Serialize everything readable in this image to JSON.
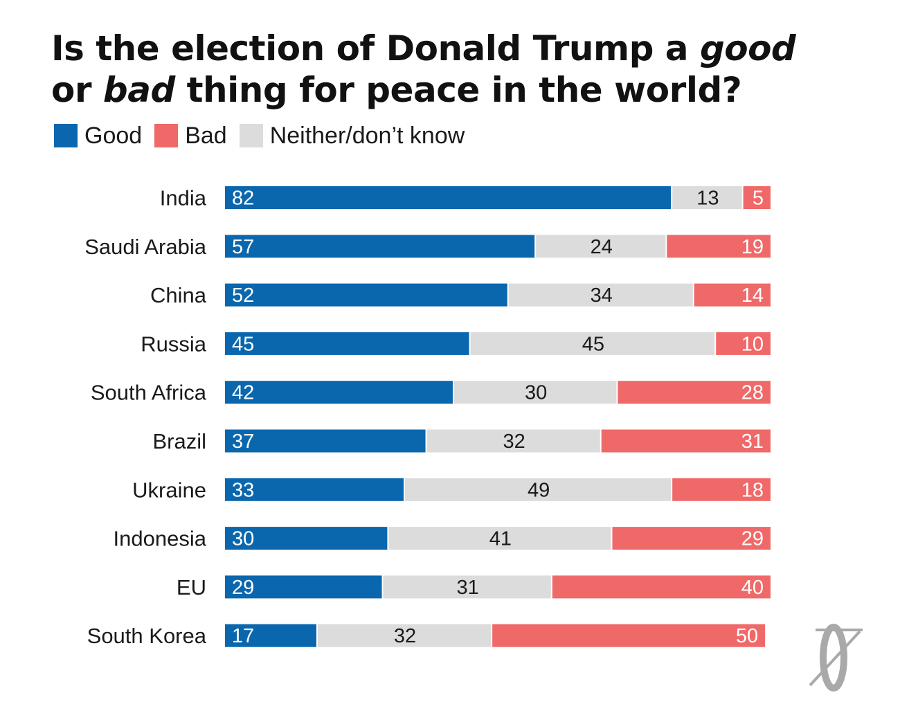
{
  "title": {
    "line1_part1": "Is the election of Donald Trump a ",
    "line1_em": "good",
    "line2_part1": "or ",
    "line2_em": "bad",
    "line2_part2": " thing for peace in the world?"
  },
  "legend": [
    {
      "label": "Good",
      "color": "#0a67ad"
    },
    {
      "label": "Bad",
      "color": "#f06969"
    },
    {
      "label": "Neither/don’t know",
      "color": "#dcdcdc"
    }
  ],
  "chart_data": {
    "type": "bar",
    "orientation": "horizontal",
    "stacked": true,
    "stack_order": [
      "Good",
      "Neither/don’t know",
      "Bad"
    ],
    "categories": [
      "India",
      "Saudi Arabia",
      "China",
      "Russia",
      "South Africa",
      "Brazil",
      "Ukraine",
      "Indonesia",
      "EU",
      "South Korea"
    ],
    "series": [
      {
        "name": "Good",
        "color": "#0a67ad",
        "values": [
          82,
          57,
          52,
          45,
          42,
          37,
          33,
          30,
          29,
          17
        ]
      },
      {
        "name": "Neither/don’t know",
        "color": "#dcdcdc",
        "values": [
          13,
          24,
          34,
          45,
          30,
          32,
          49,
          41,
          31,
          32
        ]
      },
      {
        "name": "Bad",
        "color": "#f06969",
        "values": [
          5,
          19,
          14,
          10,
          28,
          31,
          18,
          29,
          40,
          50
        ]
      }
    ],
    "xlim": [
      0,
      100
    ],
    "grid": false,
    "legend_position": "top-left"
  }
}
